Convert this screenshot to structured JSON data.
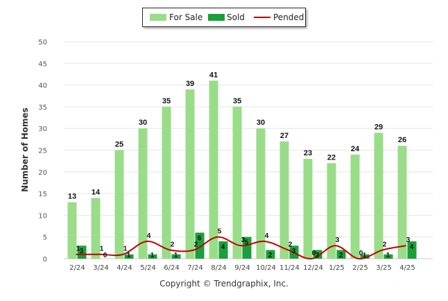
{
  "chart_data": {
    "type": "bar",
    "categories": [
      "2/24",
      "3/24",
      "4/24",
      "5/24",
      "6/24",
      "7/24",
      "8/24",
      "9/24",
      "10/24",
      "11/24",
      "12/24",
      "1/25",
      "2/25",
      "3/25",
      "4/25"
    ],
    "series": [
      {
        "name": "For Sale",
        "type": "bar",
        "color": "#99dd88",
        "values": [
          13,
          14,
          25,
          30,
          35,
          39,
          41,
          35,
          30,
          27,
          23,
          22,
          24,
          29,
          26
        ]
      },
      {
        "name": "Sold",
        "type": "bar",
        "color": "#1aa03a",
        "values": [
          3,
          0,
          1,
          1,
          1,
          6,
          4,
          5,
          2,
          3,
          2,
          2,
          1,
          1,
          4
        ]
      },
      {
        "name": "Pended",
        "type": "line",
        "color": "#c00000",
        "values": [
          1,
          1,
          1,
          4,
          2,
          2,
          5,
          3,
          4,
          2,
          0,
          3,
          0,
          2,
          3
        ]
      }
    ],
    "xlabel": "",
    "ylabel": "Number of Homes",
    "ylim": [
      0,
      50
    ],
    "yticks": [
      0,
      5,
      10,
      15,
      20,
      25,
      30,
      35,
      40,
      45,
      50
    ],
    "grid": true,
    "legend_position": "top-center"
  },
  "legend": {
    "for_sale": "For Sale",
    "sold": "Sold",
    "pended": "Pended"
  },
  "footer": "Copyright © Trendgraphix, Inc."
}
